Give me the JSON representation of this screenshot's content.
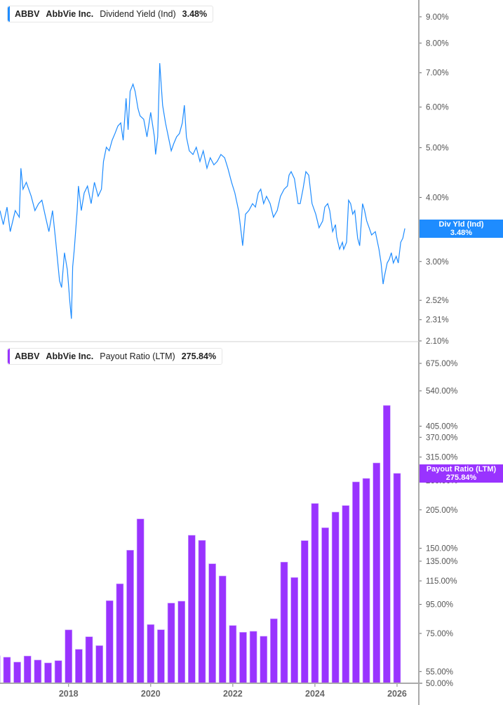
{
  "colors": {
    "yield": "#1e8cff",
    "payout": "#9933ff",
    "axis": "#aaaaaa"
  },
  "top_legend": {
    "ticker": "ABBV",
    "company": "AbbVie Inc.",
    "metric": "Dividend Yield (Ind)",
    "value": "3.48%"
  },
  "bottom_legend": {
    "ticker": "ABBV",
    "company": "AbbVie Inc.",
    "metric": "Payout Ratio (LTM)",
    "value": "275.84%"
  },
  "top_flag": {
    "label": "Div Yld (Ind)",
    "value": "3.48%"
  },
  "bottom_flag": {
    "label": "Payout Ratio (LTM)",
    "value": "275.84%"
  },
  "chart_data": [
    {
      "type": "line",
      "title": "",
      "scale": "log",
      "ylim": [
        2.1,
        9.6
      ],
      "xlim": [
        2016.33,
        2026.53
      ],
      "yticks": [
        9.0,
        8.0,
        7.0,
        6.0,
        5.0,
        4.0,
        3.0,
        2.52,
        2.31,
        2.1
      ],
      "ytick_labels": [
        "9.00%",
        "8.00%",
        "7.00%",
        "6.00%",
        "5.00%",
        "4.00%",
        "3.00%",
        "2.52%",
        "2.31%",
        "2.10%"
      ],
      "series": [
        {
          "name": "Dividend Yield (Ind)",
          "x": [
            2016.33,
            2016.41,
            2016.5,
            2016.58,
            2016.7,
            2016.8,
            2016.84,
            2016.89,
            2016.97,
            2017.09,
            2017.18,
            2017.27,
            2017.35,
            2017.44,
            2017.52,
            2017.61,
            2017.68,
            2017.73,
            2017.78,
            2017.83,
            2017.9,
            2017.97,
            2018.03,
            2018.07,
            2018.1,
            2018.14,
            2018.21,
            2018.24,
            2018.31,
            2018.38,
            2018.46,
            2018.55,
            2018.63,
            2018.72,
            2018.8,
            2018.85,
            2018.92,
            2018.99,
            2019.06,
            2019.13,
            2019.2,
            2019.27,
            2019.33,
            2019.4,
            2019.45,
            2019.5,
            2019.57,
            2019.62,
            2019.69,
            2019.74,
            2019.83,
            2019.91,
            2020.0,
            2020.09,
            2020.12,
            2020.17,
            2020.22,
            2020.29,
            2020.36,
            2020.43,
            2020.5,
            2020.56,
            2020.63,
            2020.7,
            2020.77,
            2020.82,
            2020.87,
            2020.94,
            2021.03,
            2021.11,
            2021.2,
            2021.28,
            2021.37,
            2021.45,
            2021.54,
            2021.62,
            2021.71,
            2021.8,
            2021.88,
            2021.97,
            2022.05,
            2022.14,
            2022.21,
            2022.24,
            2022.31,
            2022.39,
            2022.48,
            2022.55,
            2022.62,
            2022.68,
            2022.75,
            2022.82,
            2022.91,
            2022.99,
            2023.08,
            2023.16,
            2023.25,
            2023.33,
            2023.37,
            2023.42,
            2023.5,
            2023.59,
            2023.64,
            2023.71,
            2023.78,
            2023.85,
            2023.93,
            2024.02,
            2024.1,
            2024.19,
            2024.24,
            2024.31,
            2024.36,
            2024.43,
            2024.5,
            2024.53,
            2024.6,
            2024.67,
            2024.7,
            2024.77,
            2024.82,
            2024.87,
            2024.92,
            2024.97,
            2025.04,
            2025.09,
            2025.16,
            2025.21,
            2025.26,
            2025.32,
            2025.38,
            2025.47,
            2025.56,
            2025.61,
            2025.66,
            2025.69,
            2025.76,
            2025.81,
            2025.86,
            2025.91,
            2025.98,
            2026.03,
            2026.09,
            2026.14,
            2026.19
          ],
          "y": [
            3.77,
            3.54,
            3.83,
            3.43,
            3.77,
            3.66,
            4.56,
            4.15,
            4.28,
            4.02,
            3.77,
            3.89,
            3.95,
            3.66,
            3.43,
            3.77,
            3.33,
            3.03,
            2.75,
            2.67,
            3.12,
            2.89,
            2.51,
            2.32,
            2.93,
            3.17,
            3.77,
            4.21,
            3.77,
            4.08,
            4.21,
            3.89,
            4.28,
            4.02,
            4.15,
            4.7,
            5.01,
            4.93,
            5.17,
            5.33,
            5.51,
            5.59,
            5.17,
            6.24,
            5.42,
            6.44,
            6.65,
            6.44,
            5.96,
            5.77,
            5.68,
            5.25,
            5.86,
            5.25,
            4.85,
            5.25,
            7.31,
            6.05,
            5.59,
            5.25,
            4.93,
            5.09,
            5.25,
            5.33,
            5.59,
            6.05,
            5.25,
            4.93,
            4.85,
            5.01,
            4.7,
            4.93,
            4.56,
            4.78,
            4.63,
            4.7,
            4.85,
            4.78,
            4.56,
            4.28,
            4.08,
            3.77,
            3.38,
            3.22,
            3.71,
            3.77,
            3.89,
            3.83,
            4.08,
            4.15,
            3.89,
            4.02,
            3.89,
            3.66,
            3.77,
            4.02,
            4.15,
            4.21,
            4.42,
            4.49,
            4.35,
            3.89,
            3.89,
            4.15,
            4.49,
            4.42,
            3.89,
            3.71,
            3.49,
            3.6,
            3.83,
            3.89,
            3.77,
            3.43,
            3.54,
            3.35,
            3.17,
            3.27,
            3.17,
            3.27,
            3.95,
            3.89,
            3.71,
            3.77,
            3.33,
            3.22,
            3.89,
            3.77,
            3.6,
            3.49,
            3.38,
            3.43,
            3.17,
            2.98,
            2.71,
            2.8,
            2.98,
            3.03,
            3.12,
            2.98,
            3.07,
            2.98,
            3.27,
            3.33,
            3.48
          ]
        }
      ]
    },
    {
      "type": "bar",
      "title": "",
      "scale": "log",
      "ylim": [
        50,
        760
      ],
      "xlim": [
        2016.33,
        2026.53
      ],
      "xticks": [
        "2018",
        "2020",
        "2022",
        "2024",
        "2026"
      ],
      "yticks": [
        675,
        540,
        405,
        370,
        315,
        260,
        205,
        150,
        135,
        115,
        95,
        75,
        55,
        50
      ],
      "ytick_labels": [
        "675.00%",
        "540.00%",
        "405.00%",
        "370.00%",
        "315.00%",
        "260.00%",
        "205.00%",
        "150.00%",
        "135.00%",
        "115.00%",
        "95.00%",
        "75.00%",
        "55.00%",
        "50.00%"
      ],
      "categories": [
        "2016-03",
        "2016-06",
        "2016-09",
        "2016-12",
        "2017-03",
        "2017-06",
        "2017-09",
        "2017-12",
        "2018-03",
        "2018-06",
        "2018-09",
        "2018-12",
        "2019-03",
        "2019-06",
        "2019-09",
        "2019-12",
        "2020-03",
        "2020-06",
        "2020-09",
        "2020-12",
        "2021-03",
        "2021-06",
        "2021-09",
        "2021-12",
        "2022-03",
        "2022-06",
        "2022-09",
        "2022-12",
        "2023-03",
        "2023-06",
        "2023-09",
        "2023-12",
        "2024-03",
        "2024-06",
        "2024-09",
        "2024-12",
        "2025-03",
        "2025-06",
        "2025-09",
        "2025-12"
      ],
      "series": [
        {
          "name": "Payout Ratio (LTM)",
          "values": [
            62.5,
            61.8,
            59.4,
            62.4,
            60.4,
            59.0,
            60.1,
            77.2,
            65.9,
            73.0,
            67.9,
            97.9,
            112.3,
            147.6,
            190.4,
            80.6,
            77.3,
            96.0,
            97.5,
            166.7,
            159.9,
            132.2,
            119.7,
            80.0,
            75.7,
            76.3,
            73.3,
            84.5,
            134.0,
            118.2,
            159.6,
            215.9,
            177.2,
            201.3,
            212.3,
            257.3,
            264.7,
            300.2,
            479.3,
            275.84
          ]
        }
      ]
    }
  ]
}
